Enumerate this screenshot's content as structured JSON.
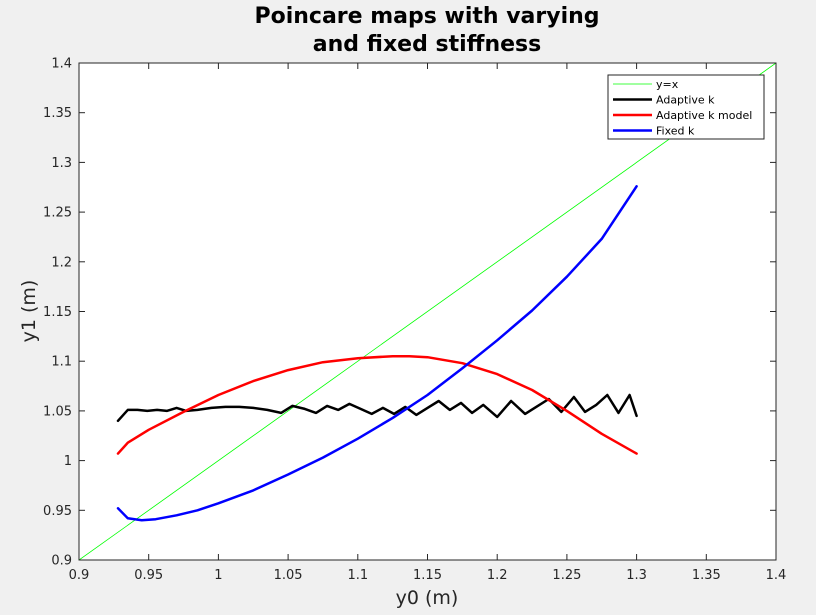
{
  "chart_data": {
    "type": "line",
    "title_lines": [
      "Poincare maps with varying",
      "and fixed stiffness"
    ],
    "xlabel": "y0 (m)",
    "ylabel": "y1 (m)",
    "xlim": [
      0.9,
      1.4
    ],
    "ylim": [
      0.9,
      1.4
    ],
    "xticks": [
      0.9,
      0.95,
      1,
      1.05,
      1.1,
      1.15,
      1.2,
      1.25,
      1.3,
      1.35,
      1.4
    ],
    "xtick_labels": [
      "0.9",
      "0.95",
      "1",
      "1.05",
      "1.1",
      "1.15",
      "1.2",
      "1.25",
      "1.3",
      "1.35",
      "1.4"
    ],
    "yticks": [
      0.9,
      0.95,
      1,
      1.05,
      1.1,
      1.15,
      1.2,
      1.25,
      1.3,
      1.35,
      1.4
    ],
    "ytick_labels": [
      "0.9",
      "0.95",
      "1",
      "1.05",
      "1.1",
      "1.15",
      "1.2",
      "1.25",
      "1.3",
      "1.35",
      "1.4"
    ],
    "grid": false,
    "legend_position": "top-right",
    "series": [
      {
        "name": "y=x",
        "color": "#00ff00",
        "width": 0.8,
        "x": [
          0.9,
          1.4
        ],
        "y": [
          0.9,
          1.4
        ]
      },
      {
        "name": "Adaptive k",
        "color": "#000000",
        "width": 2.5,
        "x": [
          0.928,
          0.935,
          0.942,
          0.949,
          0.956,
          0.963,
          0.97,
          0.977,
          0.985,
          0.995,
          1.005,
          1.015,
          1.025,
          1.035,
          1.045,
          1.053,
          1.062,
          1.07,
          1.078,
          1.086,
          1.094,
          1.102,
          1.11,
          1.118,
          1.126,
          1.134,
          1.142,
          1.15,
          1.158,
          1.166,
          1.174,
          1.182,
          1.19,
          1.2,
          1.21,
          1.22,
          1.228,
          1.237,
          1.246,
          1.255,
          1.263,
          1.271,
          1.279,
          1.287,
          1.295,
          1.3
        ],
        "y": [
          1.04,
          1.051,
          1.051,
          1.05,
          1.051,
          1.05,
          1.053,
          1.05,
          1.051,
          1.053,
          1.054,
          1.054,
          1.053,
          1.051,
          1.048,
          1.055,
          1.052,
          1.048,
          1.055,
          1.051,
          1.057,
          1.052,
          1.047,
          1.053,
          1.047,
          1.054,
          1.046,
          1.053,
          1.06,
          1.051,
          1.058,
          1.048,
          1.056,
          1.044,
          1.06,
          1.047,
          1.054,
          1.062,
          1.049,
          1.064,
          1.049,
          1.056,
          1.066,
          1.048,
          1.066,
          1.045
        ]
      },
      {
        "name": "Adaptive k model",
        "color": "#ff0000",
        "width": 2.5,
        "x": [
          0.928,
          0.935,
          0.95,
          0.975,
          1.0,
          1.025,
          1.05,
          1.075,
          1.1,
          1.125,
          1.137,
          1.15,
          1.175,
          1.2,
          1.225,
          1.25,
          1.275,
          1.3
        ],
        "y": [
          1.007,
          1.018,
          1.031,
          1.049,
          1.066,
          1.08,
          1.091,
          1.099,
          1.103,
          1.105,
          1.105,
          1.104,
          1.098,
          1.087,
          1.071,
          1.05,
          1.027,
          1.007
        ]
      },
      {
        "name": "Fixed k",
        "color": "#0000ff",
        "width": 2.5,
        "x": [
          0.928,
          0.935,
          0.945,
          0.955,
          0.97,
          0.985,
          1.0,
          1.025,
          1.05,
          1.075,
          1.1,
          1.125,
          1.15,
          1.175,
          1.2,
          1.225,
          1.25,
          1.275,
          1.3
        ],
        "y": [
          0.952,
          0.942,
          0.94,
          0.941,
          0.945,
          0.95,
          0.957,
          0.97,
          0.986,
          1.003,
          1.022,
          1.043,
          1.066,
          1.093,
          1.121,
          1.151,
          1.185,
          1.223,
          1.276
        ]
      }
    ]
  }
}
